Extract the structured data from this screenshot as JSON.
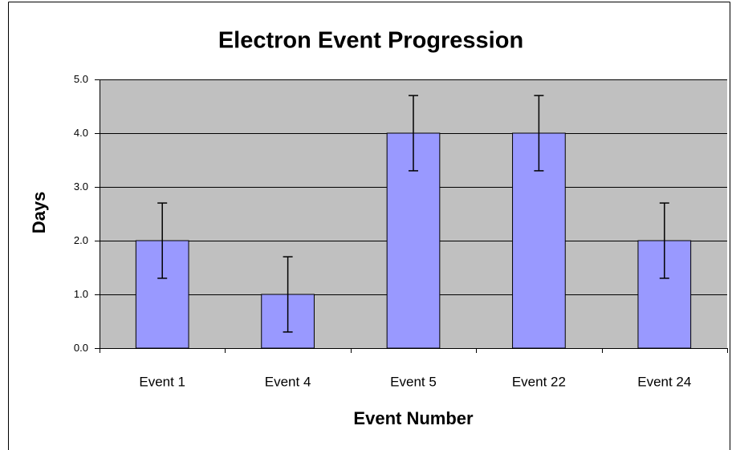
{
  "chart_data": {
    "type": "bar",
    "title": "Electron Event Progression",
    "x_label": "Event Number",
    "y_label": "Days",
    "categories": [
      "Event 1",
      "Event 4",
      "Event 5",
      "Event 22",
      "Event 24"
    ],
    "values": [
      2,
      1,
      4,
      4,
      2
    ],
    "errors": [
      0.7,
      0.7,
      0.7,
      0.7,
      0.7
    ],
    "color": "#9999ff",
    "ylim": [
      0,
      5
    ],
    "yticks": [
      {
        "value": 0,
        "label": "0.0"
      },
      {
        "value": 1,
        "label": "1.0"
      },
      {
        "value": 2,
        "label": "2.0"
      },
      {
        "value": 3,
        "label": "3.0"
      },
      {
        "value": 4,
        "label": "4.0"
      },
      {
        "value": 5,
        "label": "5.0"
      }
    ],
    "grid": true
  }
}
